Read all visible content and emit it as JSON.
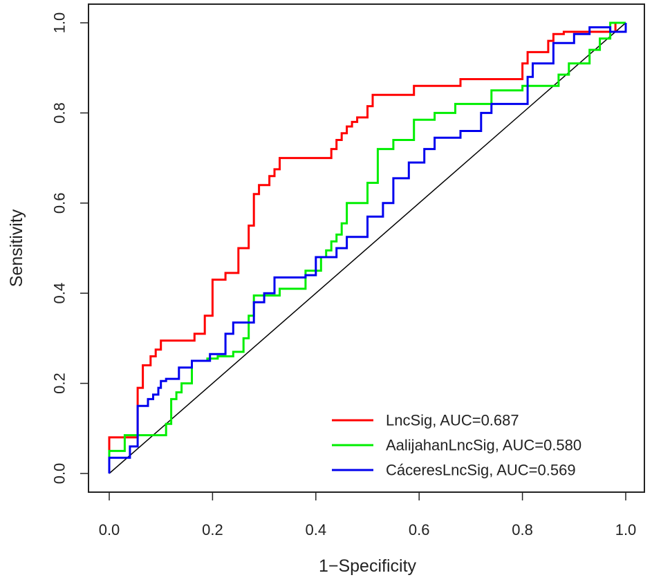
{
  "chart_data": {
    "type": "line",
    "title": "",
    "xlabel": "1−Specificity",
    "ylabel": "Sensitivity",
    "xlim": [
      0,
      1
    ],
    "ylim": [
      0,
      1
    ],
    "x_ticks": [
      "0.0",
      "0.2",
      "0.4",
      "0.6",
      "0.8",
      "1.0"
    ],
    "y_ticks": [
      "0.0",
      "0.2",
      "0.4",
      "0.6",
      "0.8",
      "1.0"
    ],
    "grid": false,
    "legend_position": "bottom-right",
    "reference_line": {
      "name": "diagonal",
      "x": [
        0,
        1
      ],
      "y": [
        0,
        1
      ],
      "color": "#000000"
    },
    "series": [
      {
        "name": "LncSig",
        "auc": 0.687,
        "legend": "LncSig, AUC=0.687",
        "color": "#ff0000",
        "x": [
          0,
          0,
          0.055,
          0.055,
          0.065,
          0.065,
          0.08,
          0.08,
          0.09,
          0.09,
          0.1,
          0.1,
          0.11,
          0.11,
          0.165,
          0.165,
          0.185,
          0.185,
          0.2,
          0.2,
          0.225,
          0.225,
          0.25,
          0.25,
          0.27,
          0.27,
          0.28,
          0.28,
          0.29,
          0.29,
          0.31,
          0.31,
          0.32,
          0.32,
          0.33,
          0.33,
          0.34,
          0.34,
          0.43,
          0.43,
          0.44,
          0.44,
          0.45,
          0.45,
          0.46,
          0.46,
          0.47,
          0.47,
          0.48,
          0.48,
          0.5,
          0.5,
          0.51,
          0.51,
          0.53,
          0.53,
          0.59,
          0.59,
          0.68,
          0.68,
          0.8,
          0.8,
          0.81,
          0.81,
          0.85,
          0.85,
          0.86,
          0.86,
          0.88,
          0.88,
          0.98,
          0.98,
          1.0
        ],
        "y": [
          0,
          0.08,
          0.08,
          0.19,
          0.19,
          0.24,
          0.24,
          0.26,
          0.26,
          0.275,
          0.275,
          0.295,
          0.295,
          0.295,
          0.295,
          0.31,
          0.31,
          0.35,
          0.35,
          0.43,
          0.43,
          0.445,
          0.445,
          0.5,
          0.5,
          0.55,
          0.55,
          0.62,
          0.62,
          0.64,
          0.64,
          0.66,
          0.66,
          0.675,
          0.675,
          0.7,
          0.7,
          0.7,
          0.7,
          0.72,
          0.72,
          0.74,
          0.74,
          0.755,
          0.755,
          0.77,
          0.77,
          0.78,
          0.78,
          0.79,
          0.79,
          0.815,
          0.815,
          0.84,
          0.84,
          0.84,
          0.84,
          0.86,
          0.86,
          0.875,
          0.875,
          0.91,
          0.91,
          0.935,
          0.935,
          0.96,
          0.96,
          0.975,
          0.975,
          0.98,
          0.98,
          1.0,
          1.0
        ]
      },
      {
        "name": "AalijahanLncSig",
        "auc": 0.58,
        "legend": "AalijahanLncSig, AUC=0.580",
        "color": "#00ee00",
        "x": [
          0,
          0,
          0.03,
          0.03,
          0.11,
          0.11,
          0.12,
          0.12,
          0.13,
          0.13,
          0.14,
          0.14,
          0.16,
          0.16,
          0.19,
          0.19,
          0.21,
          0.21,
          0.24,
          0.24,
          0.26,
          0.26,
          0.27,
          0.27,
          0.28,
          0.28,
          0.33,
          0.33,
          0.38,
          0.38,
          0.41,
          0.41,
          0.42,
          0.42,
          0.43,
          0.43,
          0.44,
          0.44,
          0.45,
          0.45,
          0.46,
          0.46,
          0.5,
          0.5,
          0.52,
          0.52,
          0.55,
          0.55,
          0.59,
          0.59,
          0.63,
          0.63,
          0.67,
          0.67,
          0.74,
          0.74,
          0.8,
          0.8,
          0.87,
          0.87,
          0.89,
          0.89,
          0.93,
          0.93,
          0.95,
          0.95,
          0.97,
          0.97,
          1.0,
          1.0
        ],
        "y": [
          0,
          0.05,
          0.05,
          0.085,
          0.085,
          0.11,
          0.11,
          0.165,
          0.165,
          0.18,
          0.18,
          0.2,
          0.2,
          0.25,
          0.25,
          0.255,
          0.255,
          0.26,
          0.26,
          0.27,
          0.27,
          0.3,
          0.3,
          0.35,
          0.35,
          0.395,
          0.395,
          0.41,
          0.41,
          0.45,
          0.45,
          0.48,
          0.48,
          0.495,
          0.495,
          0.515,
          0.515,
          0.53,
          0.53,
          0.555,
          0.555,
          0.6,
          0.6,
          0.645,
          0.645,
          0.72,
          0.72,
          0.74,
          0.74,
          0.785,
          0.785,
          0.8,
          0.8,
          0.82,
          0.82,
          0.85,
          0.85,
          0.86,
          0.86,
          0.885,
          0.885,
          0.91,
          0.91,
          0.94,
          0.94,
          0.965,
          0.965,
          1.0,
          1.0,
          1.0
        ]
      },
      {
        "name": "CáceresLncSig",
        "auc": 0.569,
        "legend": "CáceresLncSig, AUC=0.569",
        "color": "#0000ee",
        "x": [
          0,
          0,
          0.04,
          0.04,
          0.055,
          0.055,
          0.075,
          0.075,
          0.085,
          0.085,
          0.095,
          0.095,
          0.1,
          0.1,
          0.11,
          0.11,
          0.135,
          0.135,
          0.16,
          0.16,
          0.195,
          0.195,
          0.225,
          0.225,
          0.24,
          0.24,
          0.28,
          0.28,
          0.3,
          0.3,
          0.32,
          0.32,
          0.38,
          0.38,
          0.4,
          0.4,
          0.44,
          0.44,
          0.46,
          0.46,
          0.5,
          0.5,
          0.53,
          0.53,
          0.55,
          0.55,
          0.58,
          0.58,
          0.61,
          0.61,
          0.63,
          0.63,
          0.68,
          0.68,
          0.72,
          0.72,
          0.74,
          0.74,
          0.81,
          0.81,
          0.82,
          0.82,
          0.86,
          0.86,
          0.9,
          0.9,
          0.93,
          0.93,
          0.97,
          0.97,
          1.0,
          1.0
        ],
        "y": [
          0,
          0.035,
          0.035,
          0.06,
          0.06,
          0.15,
          0.15,
          0.165,
          0.165,
          0.175,
          0.175,
          0.19,
          0.19,
          0.205,
          0.205,
          0.21,
          0.21,
          0.235,
          0.235,
          0.25,
          0.25,
          0.265,
          0.265,
          0.31,
          0.31,
          0.335,
          0.335,
          0.38,
          0.38,
          0.4,
          0.4,
          0.435,
          0.435,
          0.44,
          0.44,
          0.48,
          0.48,
          0.5,
          0.5,
          0.525,
          0.525,
          0.57,
          0.57,
          0.6,
          0.6,
          0.655,
          0.655,
          0.69,
          0.69,
          0.72,
          0.72,
          0.745,
          0.745,
          0.76,
          0.76,
          0.8,
          0.8,
          0.82,
          0.82,
          0.88,
          0.88,
          0.91,
          0.91,
          0.955,
          0.955,
          0.975,
          0.975,
          0.99,
          0.99,
          0.98,
          0.98,
          1.0
        ]
      }
    ]
  }
}
